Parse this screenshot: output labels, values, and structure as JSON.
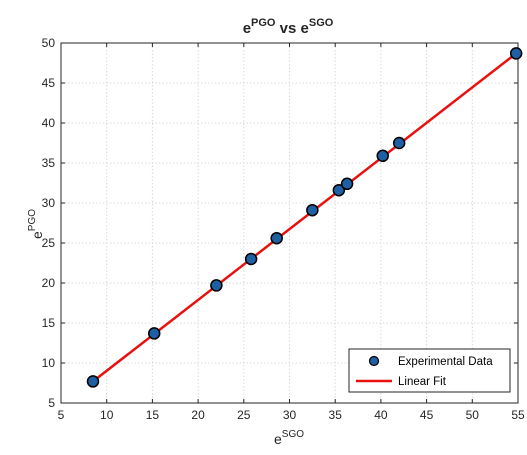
{
  "chart_data": {
    "type": "scatter",
    "title": {
      "base1": "e",
      "sup1": "PGO",
      "mid": " vs ",
      "base2": "e",
      "sup2": "SGO"
    },
    "xlabel": {
      "base": "e",
      "sup": "SGO"
    },
    "ylabel": {
      "base": "e",
      "sup": "PGO"
    },
    "xlim": [
      5,
      55
    ],
    "ylim": [
      5,
      50
    ],
    "xticks": [
      5,
      10,
      15,
      20,
      25,
      30,
      35,
      40,
      45,
      50,
      55
    ],
    "yticks": [
      5,
      10,
      15,
      20,
      25,
      30,
      35,
      40,
      45,
      50
    ],
    "grid": true,
    "legend_position": "bottom-right",
    "series": [
      {
        "name": "Experimental Data",
        "kind": "scatter",
        "marker": "circle",
        "marker_fill": "#1f5fa3",
        "marker_edge": "#000000",
        "x": [
          8.5,
          15.2,
          22.0,
          25.8,
          28.6,
          32.5,
          35.4,
          36.3,
          40.2,
          42.0,
          54.8
        ],
        "y": [
          7.7,
          13.7,
          19.7,
          23.0,
          25.6,
          29.1,
          31.6,
          32.4,
          35.9,
          37.5,
          48.7
        ]
      },
      {
        "name": "Linear Fit",
        "kind": "line",
        "color": "#e8110f",
        "x": [
          8.5,
          54.8
        ],
        "y": [
          7.7,
          48.7
        ]
      }
    ]
  }
}
